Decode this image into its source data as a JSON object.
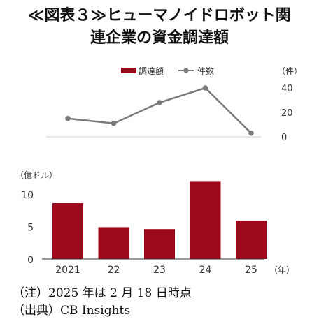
{
  "title": {
    "line1": "≪図表３≫ヒューマノイドロボット関",
    "line2": "連企業の資金調達額"
  },
  "legend": {
    "bar_label": "調達額",
    "line_label": "件数"
  },
  "colors": {
    "bar": "#9b0a1c",
    "line": "#7a7a7a"
  },
  "line_axis": {
    "unit_label": "（件）",
    "ticks": [
      "0",
      "20",
      "40"
    ]
  },
  "bar_axis": {
    "unit_label": "（億ドル）",
    "ticks": [
      "0",
      "5",
      "10"
    ]
  },
  "x_unit_label": "（年）",
  "chart_data": {
    "type": "bar",
    "categories": [
      "2021",
      "22",
      "23",
      "24",
      "25"
    ],
    "series": [
      {
        "name": "調達額",
        "type": "bar",
        "values": [
          8.6,
          4.9,
          4.6,
          12.0,
          5.9
        ],
        "ylim": [
          0,
          12
        ]
      },
      {
        "name": "件数",
        "type": "line",
        "values": [
          15,
          11,
          28,
          40,
          3
        ],
        "ylim": [
          0,
          40
        ]
      }
    ]
  },
  "notes": [
    "（注）2025 年は 2 月 18 日時点",
    "（出典）CB Insights"
  ]
}
